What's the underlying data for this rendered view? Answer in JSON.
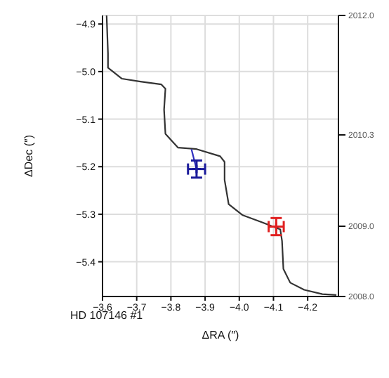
{
  "chart_data": {
    "type": "line",
    "xlabel": "ΔRA (″)",
    "ylabel": "ΔDec (″)",
    "xlim": [
      -3.6,
      -4.29
    ],
    "xticks": [
      -3.6,
      -3.7,
      -3.8,
      -3.9,
      {
        "value": -4.0,
        "label": "−4.0"
      },
      -4.1,
      -4.2
    ],
    "ylim": [
      -5.473,
      -4.882
    ],
    "yticks": [
      -4.9,
      {
        "value": -5.0,
        "label": "−5.0"
      },
      -5.1,
      -5.2,
      -5.3,
      -5.4
    ],
    "y2lim": [
      2008.0,
      2012.0
    ],
    "y2ticks": [
      {
        "value": 2008,
        "label": "2008.0"
      },
      {
        "value": 2009,
        "label": "2009.0"
      },
      {
        "value": 2010.3,
        "label": "2010.3"
      },
      {
        "value": 2012,
        "label": "2012.0"
      }
    ],
    "grid": true,
    "line_style": "solid",
    "series": [
      {
        "color": "#333333",
        "x": [
          -3.612,
          -3.616,
          -3.616,
          -3.657,
          -3.711,
          -3.772,
          -3.784,
          -3.78,
          -3.784,
          -3.821,
          -3.875,
          -3.944,
          -3.957,
          -3.957,
          -3.969,
          -4.01,
          -4.067,
          -4.12,
          -4.125,
          -4.129,
          -4.149,
          -4.19,
          -4.243,
          -4.284
        ],
        "values": [
          -4.882,
          -4.962,
          -4.992,
          -5.015,
          -5.021,
          -5.027,
          -5.036,
          -5.08,
          -5.131,
          -5.16,
          -5.163,
          -5.178,
          -5.19,
          -5.228,
          -5.279,
          -5.302,
          -5.317,
          -5.332,
          -5.356,
          -5.415,
          -5.444,
          -5.459,
          -5.468,
          -5.47
        ]
      },
      {
        "color": "#3030c0",
        "x": [
          -3.86,
          -3.875
        ],
        "values": [
          -5.163,
          -5.205
        ]
      },
      {
        "type": "scatter",
        "color": "#1a1a9a",
        "marker": "cross",
        "x": [
          -3.875
        ],
        "values": [
          -5.205
        ],
        "errors": [
          0.018
        ],
        "xerrors": [
          0.025
        ]
      },
      {
        "type": "scatter",
        "color": "#e02020",
        "marker": "cross",
        "x": [
          -4.108
        ],
        "values": [
          -5.326
        ],
        "errors": [
          0.018
        ],
        "xerrors": [
          0.022
        ]
      }
    ],
    "annotations": [
      "HD 107146 #1"
    ]
  }
}
